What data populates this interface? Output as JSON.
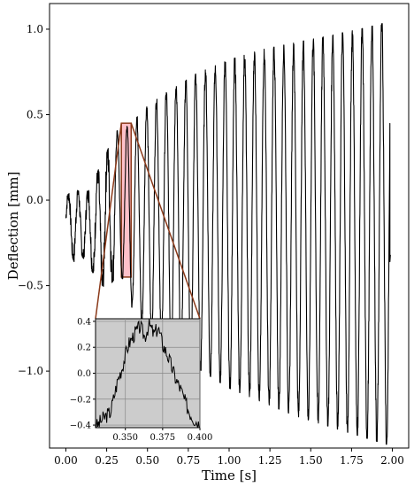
{
  "chart_data": [
    {
      "type": "line",
      "title": "",
      "xlabel": "Time [s]",
      "ylabel": "Deflection [mm]",
      "xlim": [
        -0.1,
        2.1
      ],
      "ylim": [
        -1.45,
        1.15
      ],
      "xticks": [
        0.0,
        0.25,
        0.5,
        0.75,
        1.0,
        1.25,
        1.5,
        1.75,
        2.0
      ],
      "xtick_labels": [
        "0.00",
        "0.25",
        "0.50",
        "0.75",
        "1.00",
        "1.25",
        "1.50",
        "1.75",
        "2.00"
      ],
      "yticks": [
        -1.0,
        -0.5,
        0.0,
        0.5,
        1.0
      ],
      "ytick_labels": [
        "−1.0",
        "−0.5",
        "0.0",
        "0.5",
        "1.0"
      ],
      "grid": false,
      "series": [
        {
          "color": "#000000",
          "x": [
            0.0,
            0.05,
            0.1,
            0.15,
            0.2,
            0.25,
            0.3,
            0.35,
            0.4,
            0.5,
            0.6,
            0.7,
            0.8,
            0.9,
            1.0,
            1.2,
            1.4,
            1.6,
            1.8,
            1.97
          ],
          "upper": [
            0.02,
            0.07,
            0.04,
            0.06,
            0.18,
            0.28,
            0.4,
            0.42,
            0.45,
            0.55,
            0.62,
            0.68,
            0.74,
            0.78,
            0.82,
            0.88,
            0.92,
            0.96,
            1.0,
            1.04
          ],
          "lower": [
            -0.23,
            -0.36,
            -0.33,
            -0.4,
            -0.48,
            -0.52,
            -0.46,
            -0.46,
            -0.62,
            -0.78,
            -0.86,
            -0.92,
            -0.98,
            -1.04,
            -1.1,
            -1.18,
            -1.26,
            -1.32,
            -1.38,
            -1.43
          ],
          "period": 0.06,
          "t_end": 1.985
        }
      ],
      "highlight_box": {
        "x0": 0.34,
        "x1": 0.4,
        "y0": -0.45,
        "y1": 0.45,
        "color": "#ffb6c1",
        "edge": "#8b3a1a"
      }
    },
    {
      "type": "line",
      "title": "",
      "xlabel": "",
      "ylabel": "",
      "xlim": [
        0.33,
        0.4
      ],
      "ylim": [
        -0.42,
        0.42
      ],
      "xticks": [
        0.35,
        0.375,
        0.4
      ],
      "xtick_labels": [
        "0.350",
        "0.375",
        "0.400"
      ],
      "yticks": [
        -0.4,
        -0.2,
        0.0,
        0.2,
        0.4
      ],
      "ytick_labels": [
        "−0.4",
        "−0.2",
        "0.0",
        "0.2",
        "0.4"
      ],
      "grid": true,
      "background": "#cccccc",
      "series": [
        {
          "color": "#000000",
          "x": [
            0.33,
            0.335,
            0.34,
            0.345,
            0.348,
            0.352,
            0.356,
            0.36,
            0.363,
            0.366,
            0.369,
            0.372,
            0.375,
            0.378,
            0.381,
            0.384,
            0.387,
            0.39,
            0.393,
            0.396,
            0.4
          ],
          "y": [
            -0.42,
            -0.35,
            -0.3,
            -0.05,
            0.05,
            0.22,
            0.3,
            0.36,
            0.28,
            0.38,
            0.3,
            0.35,
            0.22,
            0.15,
            0.05,
            -0.05,
            -0.12,
            -0.22,
            -0.3,
            -0.35,
            -0.4
          ]
        }
      ]
    }
  ]
}
